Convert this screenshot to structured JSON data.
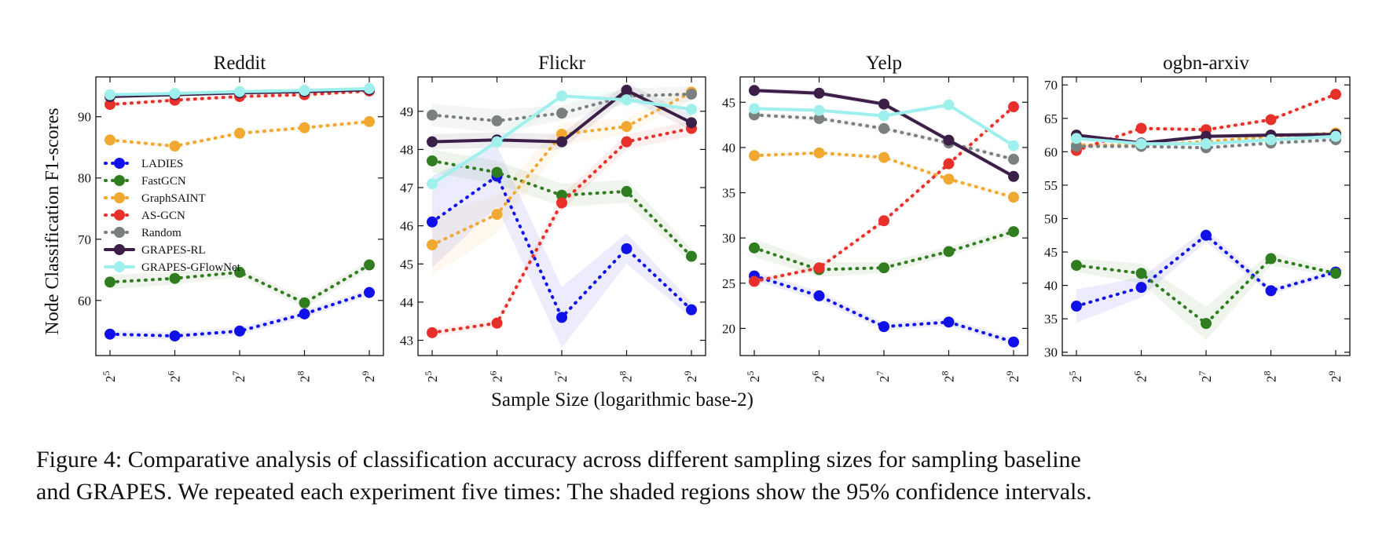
{
  "figure": {
    "ylabel": "Node Classification F1-scores",
    "xlabel": "Sample Size (logarithmic base-2)",
    "caption_line1": "Figure 4: Comparative analysis of classification accuracy across different sampling sizes for sampling baseline",
    "caption_line2": "and GRAPES. We repeated each experiment five times: The shaded regions show the 95% confidence intervals."
  },
  "legend": {
    "placement": "inside-left of first panel",
    "entries": [
      "LADIES",
      "FastGCN",
      "GraphSAINT",
      "AS-GCN",
      "Random",
      "GRAPES-RL",
      "GRAPES-GFlowNet"
    ]
  },
  "series_styles": {
    "LADIES": {
      "color": "#1010e8",
      "dash": "dotted"
    },
    "FastGCN": {
      "color": "#2f7d1f",
      "dash": "dotted"
    },
    "GraphSAINT": {
      "color": "#f0a830",
      "dash": "dotted"
    },
    "AS-GCN": {
      "color": "#e8302a",
      "dash": "dotted"
    },
    "Random": {
      "color": "#7a7f80",
      "dash": "dotted"
    },
    "GRAPES-RL": {
      "color": "#3b1f48",
      "dash": "solid"
    },
    "GRAPES-GFlowNet": {
      "color": "#9ff0ec",
      "dash": "solid"
    }
  },
  "chart_data": [
    {
      "type": "line",
      "title": "Reddit",
      "x_ticks": [
        "2^5",
        "2^6",
        "2^7",
        "2^8",
        "2^9"
      ],
      "y_ticks": [
        60,
        70,
        80,
        90
      ],
      "ylim": [
        51,
        96.5
      ],
      "series": [
        {
          "name": "LADIES",
          "values": [
            54.5,
            54.2,
            55.0,
            57.8,
            61.3
          ],
          "ci": [
            0.6,
            0.6,
            0.6,
            0.6,
            0.6
          ]
        },
        {
          "name": "FastGCN",
          "values": [
            63.0,
            63.6,
            64.6,
            59.6,
            65.8
          ],
          "ci": [
            1.2,
            1.0,
            0.8,
            0.8,
            0.8
          ]
        },
        {
          "name": "GraphSAINT",
          "values": [
            86.2,
            85.2,
            87.3,
            88.2,
            89.2
          ],
          "ci": [
            0.4,
            0.4,
            0.4,
            0.4,
            0.4
          ]
        },
        {
          "name": "AS-GCN",
          "values": [
            92.0,
            92.7,
            93.3,
            93.6,
            94.2
          ],
          "ci": [
            0.3,
            0.3,
            0.3,
            0.3,
            0.3
          ]
        },
        {
          "name": "Random",
          "values": [
            93.5,
            93.7,
            94.0,
            94.2,
            94.5
          ],
          "ci": [
            0.2,
            0.2,
            0.2,
            0.2,
            0.2
          ]
        },
        {
          "name": "GRAPES-RL",
          "values": [
            93.3,
            93.6,
            93.9,
            94.1,
            94.4
          ],
          "ci": [
            0.2,
            0.2,
            0.2,
            0.2,
            0.2
          ]
        },
        {
          "name": "GRAPES-GFlowNet",
          "values": [
            93.6,
            93.8,
            94.1,
            94.3,
            94.6
          ],
          "ci": [
            0.2,
            0.2,
            0.2,
            0.2,
            0.2
          ]
        }
      ]
    },
    {
      "type": "line",
      "title": "Flickr",
      "x_ticks": [
        "2^5",
        "2^6",
        "2^7",
        "2^8",
        "2^9"
      ],
      "y_ticks": [
        43,
        44,
        45,
        46,
        47,
        48,
        49
      ],
      "ylim": [
        42.6,
        49.9
      ],
      "series": [
        {
          "name": "LADIES",
          "values": [
            46.1,
            47.3,
            43.6,
            45.4,
            43.8
          ],
          "ci": [
            1.2,
            0.8,
            0.8,
            0.4,
            0.2
          ]
        },
        {
          "name": "FastGCN",
          "values": [
            47.7,
            47.4,
            46.8,
            46.9,
            45.2
          ],
          "ci": [
            0.3,
            0.3,
            0.3,
            0.3,
            0.2
          ]
        },
        {
          "name": "GraphSAINT",
          "values": [
            45.5,
            46.3,
            48.4,
            48.6,
            49.5
          ],
          "ci": [
            0.8,
            0.5,
            0.3,
            0.2,
            0.2
          ]
        },
        {
          "name": "AS-GCN",
          "values": [
            43.2,
            43.45,
            46.6,
            48.2,
            48.55
          ],
          "ci": [
            0.1,
            0.1,
            0.2,
            0.2,
            0.2
          ]
        },
        {
          "name": "Random",
          "values": [
            48.9,
            48.75,
            48.95,
            49.4,
            49.45
          ],
          "ci": [
            0.3,
            0.3,
            0.2,
            0.2,
            0.2
          ]
        },
        {
          "name": "GRAPES-RL",
          "values": [
            48.2,
            48.25,
            48.2,
            49.55,
            48.7
          ],
          "ci": [
            0.2,
            0.2,
            0.2,
            0.2,
            0.2
          ]
        },
        {
          "name": "GRAPES-GFlowNet",
          "values": [
            47.1,
            48.2,
            49.4,
            49.3,
            49.05
          ],
          "ci": [
            0.2,
            0.2,
            0.2,
            0.2,
            0.2
          ]
        }
      ]
    },
    {
      "type": "line",
      "title": "Yelp",
      "x_ticks": [
        "2^5",
        "2^6",
        "2^7",
        "2^8",
        "2^9"
      ],
      "y_ticks": [
        20,
        25,
        30,
        35,
        40,
        45
      ],
      "ylim": [
        17,
        47.8
      ],
      "series": [
        {
          "name": "LADIES",
          "values": [
            25.8,
            23.6,
            20.2,
            20.7,
            18.5
          ],
          "ci": [
            0.5,
            0.5,
            0.4,
            0.4,
            0.4
          ]
        },
        {
          "name": "FastGCN",
          "values": [
            28.9,
            26.5,
            26.7,
            28.5,
            30.7
          ],
          "ci": [
            1.0,
            0.8,
            0.6,
            0.5,
            0.5
          ]
        },
        {
          "name": "GraphSAINT",
          "values": [
            39.1,
            39.4,
            38.9,
            36.5,
            34.5
          ],
          "ci": [
            0.3,
            0.3,
            0.3,
            0.3,
            0.3
          ]
        },
        {
          "name": "AS-GCN",
          "values": [
            25.2,
            26.7,
            31.9,
            38.2,
            44.5
          ],
          "ci": [
            0.3,
            0.3,
            0.3,
            0.3,
            0.3
          ]
        },
        {
          "name": "Random",
          "values": [
            43.6,
            43.2,
            42.1,
            40.5,
            38.7
          ],
          "ci": [
            0.3,
            0.3,
            0.3,
            0.3,
            0.3
          ]
        },
        {
          "name": "GRAPES-RL",
          "values": [
            46.3,
            46.0,
            44.8,
            40.8,
            36.8
          ],
          "ci": [
            0.3,
            0.3,
            0.3,
            0.3,
            0.3
          ]
        },
        {
          "name": "GRAPES-GFlowNet",
          "values": [
            44.3,
            44.1,
            43.5,
            44.7,
            40.2
          ],
          "ci": [
            0.3,
            0.3,
            0.3,
            0.3,
            0.3
          ]
        }
      ]
    },
    {
      "type": "line",
      "title": "ogbn-arxiv",
      "x_ticks": [
        "2^5",
        "2^6",
        "2^7",
        "2^8",
        "2^9"
      ],
      "y_ticks": [
        30,
        35,
        40,
        45,
        50,
        55,
        60,
        65,
        70
      ],
      "ylim": [
        29.5,
        71.2
      ],
      "series": [
        {
          "name": "LADIES",
          "values": [
            36.9,
            39.7,
            47.5,
            39.2,
            42.0
          ],
          "ci": [
            2.5,
            1.5,
            1.0,
            0.5,
            0.5
          ]
        },
        {
          "name": "FastGCN",
          "values": [
            43.0,
            41.8,
            34.3,
            44.0,
            41.8
          ],
          "ci": [
            1.0,
            1.5,
            2.5,
            1.0,
            0.5
          ]
        },
        {
          "name": "GraphSAINT",
          "values": [
            61.0,
            61.0,
            61.5,
            62.3,
            62.8
          ],
          "ci": [
            0.3,
            0.3,
            0.3,
            0.3,
            0.3
          ]
        },
        {
          "name": "AS-GCN",
          "values": [
            60.2,
            63.5,
            63.3,
            64.8,
            68.6
          ],
          "ci": [
            0.3,
            0.3,
            0.3,
            0.3,
            0.3
          ]
        },
        {
          "name": "Random",
          "values": [
            60.8,
            60.8,
            60.6,
            61.3,
            61.8
          ],
          "ci": [
            0.3,
            0.3,
            0.3,
            0.3,
            0.3
          ]
        },
        {
          "name": "GRAPES-RL",
          "values": [
            62.5,
            61.3,
            62.3,
            62.5,
            62.6
          ],
          "ci": [
            0.3,
            0.3,
            0.3,
            0.3,
            0.3
          ]
        },
        {
          "name": "GRAPES-GFlowNet",
          "values": [
            62.0,
            61.2,
            61.2,
            61.8,
            62.3
          ],
          "ci": [
            0.3,
            0.3,
            0.3,
            0.3,
            0.3
          ]
        }
      ]
    }
  ]
}
